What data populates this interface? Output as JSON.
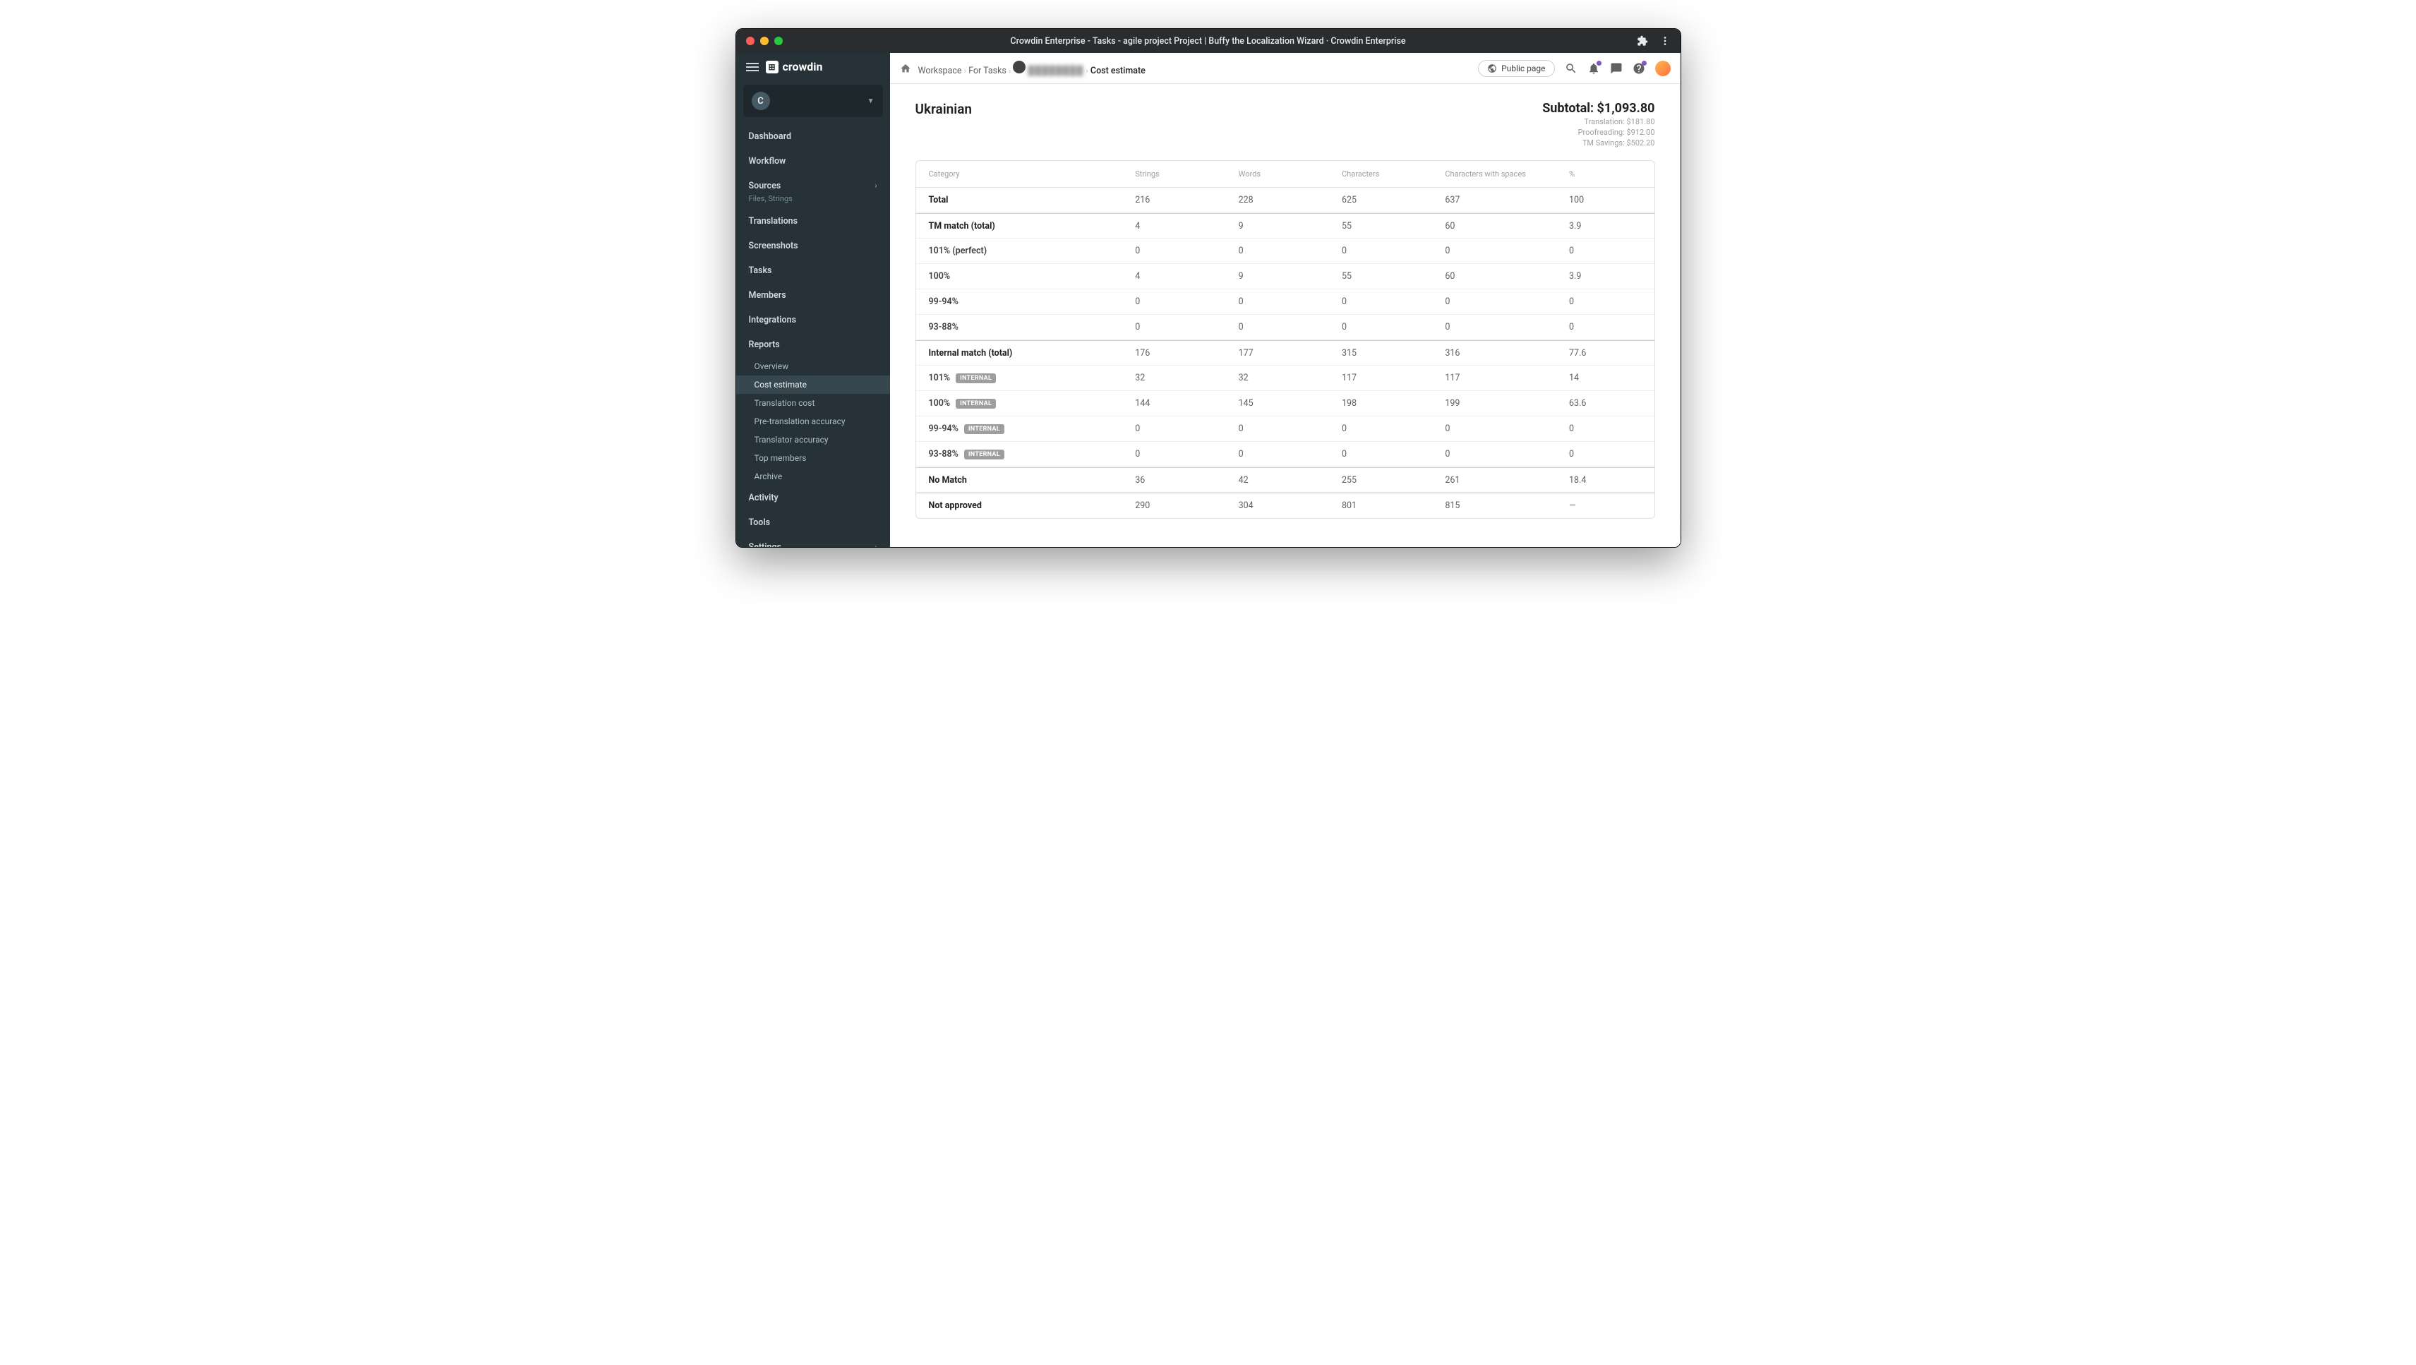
{
  "window": {
    "title": "Crowdin Enterprise - Tasks - agile project Project | Buffy the Localization Wizard · Crowdin Enterprise"
  },
  "sidebar": {
    "brand": "crowdin",
    "org_initial": "C",
    "items": [
      {
        "label": "Dashboard"
      },
      {
        "label": "Workflow"
      },
      {
        "label": "Sources",
        "sub": "Files, Strings",
        "chevron": true
      },
      {
        "label": "Translations"
      },
      {
        "label": "Screenshots"
      },
      {
        "label": "Tasks"
      },
      {
        "label": "Members"
      },
      {
        "label": "Integrations"
      },
      {
        "label": "Reports",
        "children": [
          {
            "label": "Overview"
          },
          {
            "label": "Cost estimate",
            "active": true
          },
          {
            "label": "Translation cost"
          },
          {
            "label": "Pre-translation accuracy"
          },
          {
            "label": "Translator accuracy"
          },
          {
            "label": "Top members"
          },
          {
            "label": "Archive"
          }
        ]
      },
      {
        "label": "Activity"
      },
      {
        "label": "Tools"
      },
      {
        "label": "Settings",
        "chevron": true
      }
    ]
  },
  "breadcrumb": {
    "items": [
      {
        "label": "Workspace"
      },
      {
        "label": "For Tasks"
      },
      {
        "label": "████████",
        "blurred": true
      },
      {
        "label": "Cost estimate",
        "current": true
      }
    ]
  },
  "topbar": {
    "public_page": "Public page"
  },
  "report": {
    "language": "Ukrainian",
    "subtotal_label": "Subtotal:",
    "subtotal_value": "$1,093.80",
    "lines": [
      "Translation: $181.80",
      "Proofreading: $912.00",
      "TM Savings: $502.20"
    ]
  },
  "table": {
    "columns": [
      "Category",
      "Strings",
      "Words",
      "Characters",
      "Characters with spaces",
      "%"
    ],
    "rows": [
      {
        "cat": "Total",
        "bold": true,
        "vals": [
          "216",
          "228",
          "625",
          "637",
          "100"
        ]
      },
      {
        "cat": "TM match (total)",
        "bold": true,
        "section": true,
        "vals": [
          "4",
          "9",
          "55",
          "60",
          "3.9"
        ]
      },
      {
        "cat": "101% (perfect)",
        "vals": [
          "0",
          "0",
          "0",
          "0",
          "0"
        ]
      },
      {
        "cat": "100%",
        "vals": [
          "4",
          "9",
          "55",
          "60",
          "3.9"
        ]
      },
      {
        "cat": "99-94%",
        "vals": [
          "0",
          "0",
          "0",
          "0",
          "0"
        ]
      },
      {
        "cat": "93-88%",
        "vals": [
          "0",
          "0",
          "0",
          "0",
          "0"
        ]
      },
      {
        "cat": "Internal match (total)",
        "bold": true,
        "section": true,
        "vals": [
          "176",
          "177",
          "315",
          "316",
          "77.6"
        ]
      },
      {
        "cat": "101%",
        "badge": "INTERNAL",
        "vals": [
          "32",
          "32",
          "117",
          "117",
          "14"
        ]
      },
      {
        "cat": "100%",
        "badge": "INTERNAL",
        "vals": [
          "144",
          "145",
          "198",
          "199",
          "63.6"
        ]
      },
      {
        "cat": "99-94%",
        "badge": "INTERNAL",
        "vals": [
          "0",
          "0",
          "0",
          "0",
          "0"
        ]
      },
      {
        "cat": "93-88%",
        "badge": "INTERNAL",
        "vals": [
          "0",
          "0",
          "0",
          "0",
          "0"
        ]
      },
      {
        "cat": "No Match",
        "bold": true,
        "section": true,
        "vals": [
          "36",
          "42",
          "255",
          "261",
          "18.4"
        ]
      },
      {
        "cat": "Not approved",
        "bold": true,
        "section": true,
        "vals": [
          "290",
          "304",
          "801",
          "815",
          "—"
        ]
      }
    ]
  }
}
